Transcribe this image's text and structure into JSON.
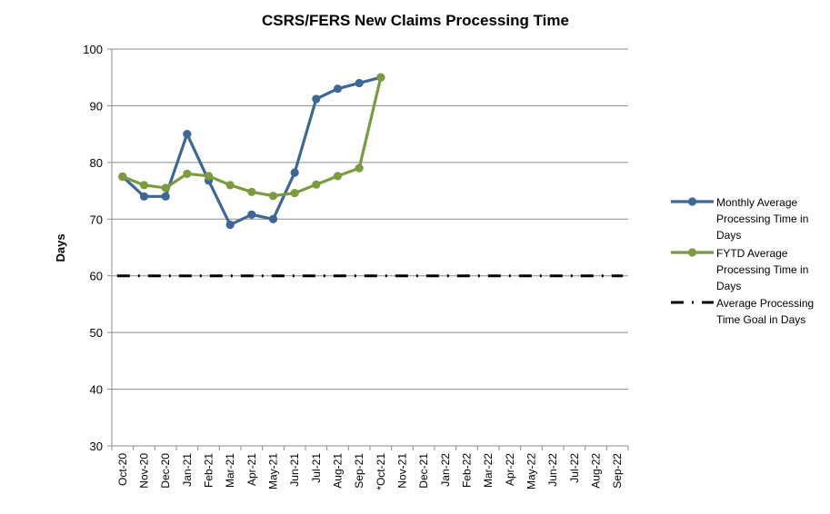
{
  "chart_data": {
    "type": "line",
    "title": "CSRS/FERS New Claims Processing Time",
    "xlabel": "",
    "ylabel": "Days",
    "ylim": [
      30,
      100
    ],
    "yticks": [
      30,
      40,
      50,
      60,
      70,
      80,
      90,
      100
    ],
    "grid": "horizontal",
    "legend_position": "right",
    "categories": [
      "Oct-20",
      "Nov-20",
      "Dec-20",
      "Jan-21",
      "Feb-21",
      "Mar-21",
      "Apr-21",
      "May-21",
      "Jun-21",
      "Jul-21",
      "Aug-21",
      "Sep-21",
      "*Oct-21",
      "Nov-21",
      "Dec-21",
      "Jan-22",
      "Feb-22",
      "Mar-22",
      "Apr-22",
      "May-22",
      "Jun-22",
      "Jul-22",
      "Aug-22",
      "Sep-22"
    ],
    "series": [
      {
        "name": "Monthly Average Processing Time in Days",
        "legend_lines": [
          "Monthly Average",
          "Processing Time in",
          "Days"
        ],
        "color": "#3d6797",
        "style": "line-marker",
        "values": [
          77.5,
          74,
          74,
          85,
          76.8,
          69,
          70.8,
          70,
          78.2,
          91.2,
          93,
          94,
          95,
          null,
          null,
          null,
          null,
          null,
          null,
          null,
          null,
          null,
          null,
          null
        ]
      },
      {
        "name": "FYTD Average Processing Time in Days",
        "legend_lines": [
          "FYTD Average",
          "Processing Time in",
          "Days"
        ],
        "color": "#7a9c3e",
        "style": "line-marker",
        "values": [
          77.5,
          76,
          75.5,
          78,
          77.6,
          76,
          74.8,
          74.1,
          74.6,
          76.1,
          77.6,
          79,
          95,
          null,
          null,
          null,
          null,
          null,
          null,
          null,
          null,
          null,
          null,
          null
        ]
      },
      {
        "name": "Average Processing Time Goal in Days",
        "legend_lines": [
          "Average Processing",
          "Time Goal in Days"
        ],
        "color": "#000000",
        "style": "dash-dot",
        "values": [
          60,
          60,
          60,
          60,
          60,
          60,
          60,
          60,
          60,
          60,
          60,
          60,
          60,
          60,
          60,
          60,
          60,
          60,
          60,
          60,
          60,
          60,
          60,
          60
        ]
      }
    ]
  }
}
